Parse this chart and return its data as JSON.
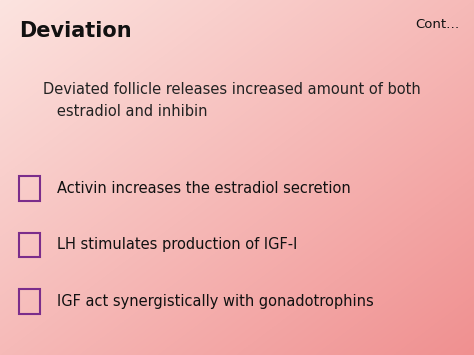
{
  "title": "Deviation",
  "cont_label": "Cont…",
  "subtitle": "Deviated follicle releases increased amount of both\n   estradiol and inhibin",
  "bullet_items": [
    "Activin increases the estradiol secretion",
    "LH stimulates production of IGF-I",
    "IGF act synergistically with gonadotrophins"
  ],
  "title_color": "#111111",
  "title_fontsize": 15,
  "subtitle_fontsize": 10.5,
  "bullet_fontsize": 10.5,
  "cont_fontsize": 9.5,
  "text_color": "#111111",
  "bullet_color": "#7b2d8b",
  "subtitle_color": "#222222",
  "bg_top_left": "#fce4e0",
  "bg_bottom_right": "#f09090"
}
